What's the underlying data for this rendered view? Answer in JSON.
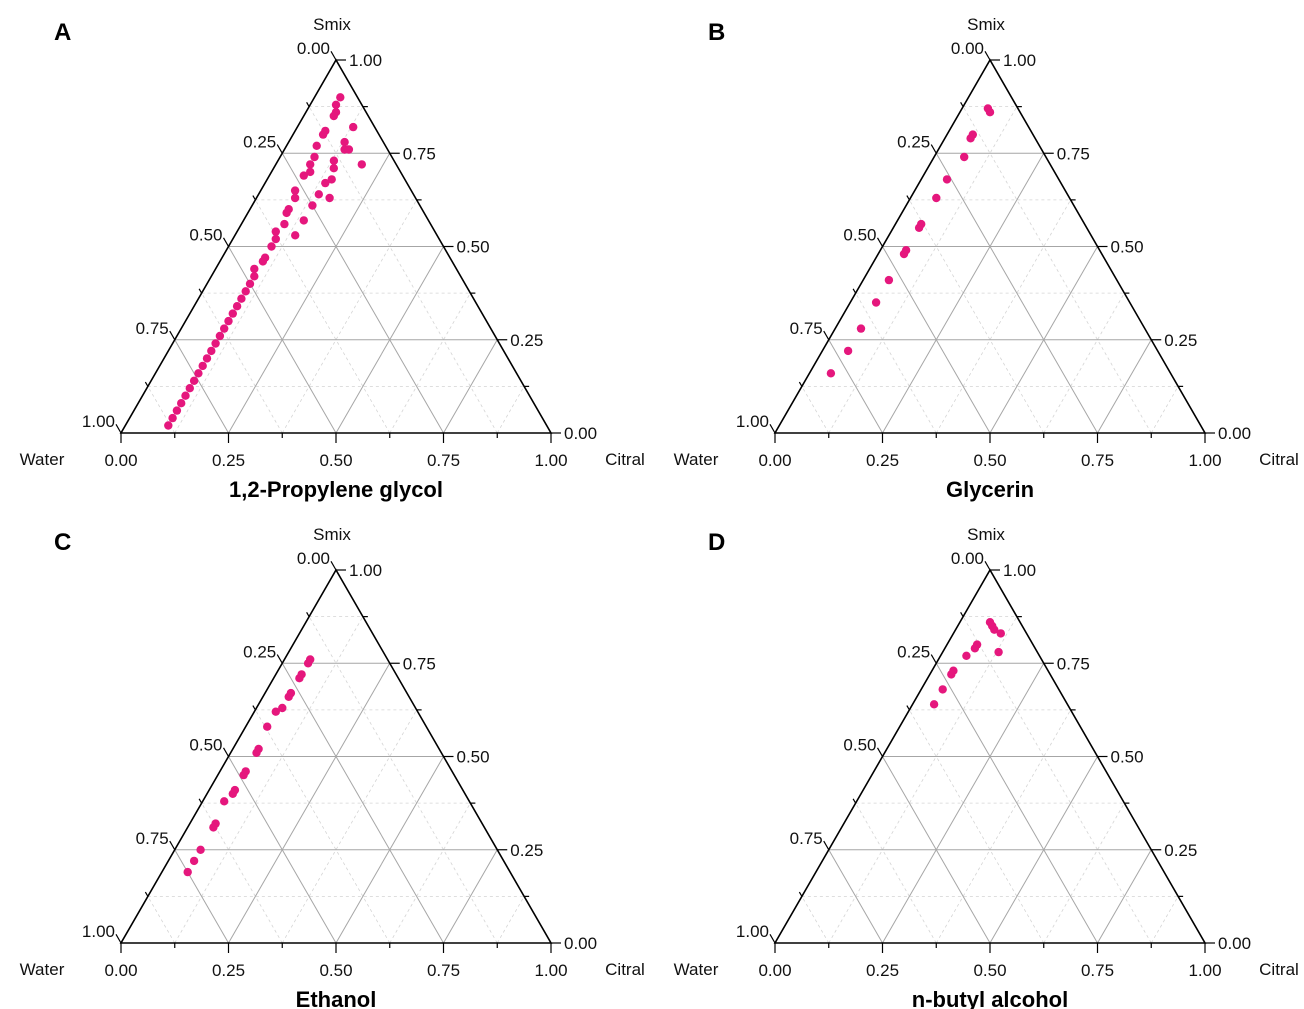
{
  "figure": {
    "point_color": "#e5177d",
    "major_grid_color": "#a6a6a6",
    "minor_grid_color": "#d4d4d4",
    "axis_color": "#000000"
  },
  "chart_data": [
    {
      "type": "scatter",
      "panel": "A",
      "title": "1,2-Propylene glycol",
      "apex_labels": {
        "top": "Smix",
        "left": "Water",
        "right": "Citral"
      },
      "components": [
        "Water",
        "Smix",
        "Citral"
      ],
      "ticks": [
        "0.00",
        "0.25",
        "0.50",
        "0.75",
        "1.00"
      ],
      "grid": true,
      "points": [
        {
          "water": 0.04,
          "smix": 0.9,
          "citral": 0.06
        },
        {
          "water": 0.06,
          "smix": 0.88,
          "citral": 0.06
        },
        {
          "water": 0.07,
          "smix": 0.86,
          "citral": 0.07
        },
        {
          "water": 0.08,
          "smix": 0.85,
          "citral": 0.07
        },
        {
          "water": 0.12,
          "smix": 0.81,
          "citral": 0.07
        },
        {
          "water": 0.13,
          "smix": 0.8,
          "citral": 0.07
        },
        {
          "water": 0.16,
          "smix": 0.77,
          "citral": 0.07
        },
        {
          "water": 0.18,
          "smix": 0.74,
          "citral": 0.08
        },
        {
          "water": 0.2,
          "smix": 0.72,
          "citral": 0.08
        },
        {
          "water": 0.21,
          "smix": 0.7,
          "citral": 0.09
        },
        {
          "water": 0.23,
          "smix": 0.69,
          "citral": 0.08
        },
        {
          "water": 0.27,
          "smix": 0.65,
          "citral": 0.08
        },
        {
          "water": 0.28,
          "smix": 0.63,
          "citral": 0.09
        },
        {
          "water": 0.31,
          "smix": 0.6,
          "citral": 0.09
        },
        {
          "water": 0.32,
          "smix": 0.59,
          "citral": 0.09
        },
        {
          "water": 0.34,
          "smix": 0.56,
          "citral": 0.1
        },
        {
          "water": 0.37,
          "smix": 0.54,
          "citral": 0.09
        },
        {
          "water": 0.38,
          "smix": 0.52,
          "citral": 0.1
        },
        {
          "water": 0.4,
          "smix": 0.5,
          "citral": 0.1
        },
        {
          "water": 0.43,
          "smix": 0.47,
          "citral": 0.1
        },
        {
          "water": 0.44,
          "smix": 0.46,
          "citral": 0.1
        },
        {
          "water": 0.47,
          "smix": 0.44,
          "citral": 0.09
        },
        {
          "water": 0.48,
          "smix": 0.42,
          "citral": 0.1
        },
        {
          "water": 0.5,
          "smix": 0.4,
          "citral": 0.1
        },
        {
          "water": 0.52,
          "smix": 0.38,
          "citral": 0.1
        },
        {
          "water": 0.54,
          "smix": 0.36,
          "citral": 0.1
        },
        {
          "water": 0.56,
          "smix": 0.34,
          "citral": 0.1
        },
        {
          "water": 0.58,
          "smix": 0.32,
          "citral": 0.1
        },
        {
          "water": 0.6,
          "smix": 0.3,
          "citral": 0.1
        },
        {
          "water": 0.62,
          "smix": 0.28,
          "citral": 0.1
        },
        {
          "water": 0.64,
          "smix": 0.26,
          "citral": 0.1
        },
        {
          "water": 0.66,
          "smix": 0.24,
          "citral": 0.1
        },
        {
          "water": 0.68,
          "smix": 0.22,
          "citral": 0.1
        },
        {
          "water": 0.7,
          "smix": 0.2,
          "citral": 0.1
        },
        {
          "water": 0.72,
          "smix": 0.18,
          "citral": 0.1
        },
        {
          "water": 0.74,
          "smix": 0.16,
          "citral": 0.1
        },
        {
          "water": 0.76,
          "smix": 0.14,
          "citral": 0.1
        },
        {
          "water": 0.78,
          "smix": 0.12,
          "citral": 0.1
        },
        {
          "water": 0.8,
          "smix": 0.1,
          "citral": 0.1
        },
        {
          "water": 0.82,
          "smix": 0.08,
          "citral": 0.1
        },
        {
          "water": 0.84,
          "smix": 0.06,
          "citral": 0.1
        },
        {
          "water": 0.86,
          "smix": 0.04,
          "citral": 0.1
        },
        {
          "water": 0.88,
          "smix": 0.02,
          "citral": 0.1
        },
        {
          "water": 0.05,
          "smix": 0.82,
          "citral": 0.13
        },
        {
          "water": 0.09,
          "smix": 0.78,
          "citral": 0.13
        },
        {
          "water": 0.1,
          "smix": 0.76,
          "citral": 0.14
        },
        {
          "water": 0.14,
          "smix": 0.73,
          "citral": 0.13
        },
        {
          "water": 0.15,
          "smix": 0.71,
          "citral": 0.14
        },
        {
          "water": 0.19,
          "smix": 0.67,
          "citral": 0.14
        },
        {
          "water": 0.22,
          "smix": 0.64,
          "citral": 0.14
        },
        {
          "water": 0.25,
          "smix": 0.61,
          "citral": 0.14
        },
        {
          "water": 0.29,
          "smix": 0.57,
          "citral": 0.14
        },
        {
          "water": 0.33,
          "smix": 0.53,
          "citral": 0.14
        },
        {
          "water": 0.08,
          "smix": 0.72,
          "citral": 0.2
        },
        {
          "water": 0.09,
          "smix": 0.76,
          "citral": 0.15
        },
        {
          "water": 0.17,
          "smix": 0.68,
          "citral": 0.15
        },
        {
          "water": 0.2,
          "smix": 0.63,
          "citral": 0.17
        }
      ]
    },
    {
      "type": "scatter",
      "panel": "B",
      "title": "Glycerin",
      "apex_labels": {
        "top": "Smix",
        "left": "Water",
        "right": "Citral"
      },
      "components": [
        "Water",
        "Smix",
        "Citral"
      ],
      "ticks": [
        "0.00",
        "0.25",
        "0.50",
        "0.75",
        "1.00"
      ],
      "grid": true,
      "points": [
        {
          "water": 0.07,
          "smix": 0.87,
          "citral": 0.06
        },
        {
          "water": 0.07,
          "smix": 0.86,
          "citral": 0.07
        },
        {
          "water": 0.14,
          "smix": 0.8,
          "citral": 0.06
        },
        {
          "water": 0.15,
          "smix": 0.79,
          "citral": 0.06
        },
        {
          "water": 0.19,
          "smix": 0.74,
          "citral": 0.07
        },
        {
          "water": 0.26,
          "smix": 0.68,
          "citral": 0.06
        },
        {
          "water": 0.31,
          "smix": 0.63,
          "citral": 0.06
        },
        {
          "water": 0.38,
          "smix": 0.56,
          "citral": 0.06
        },
        {
          "water": 0.39,
          "smix": 0.55,
          "citral": 0.06
        },
        {
          "water": 0.45,
          "smix": 0.49,
          "citral": 0.06
        },
        {
          "water": 0.46,
          "smix": 0.48,
          "citral": 0.06
        },
        {
          "water": 0.53,
          "smix": 0.41,
          "citral": 0.06
        },
        {
          "water": 0.59,
          "smix": 0.35,
          "citral": 0.06
        },
        {
          "water": 0.66,
          "smix": 0.28,
          "citral": 0.06
        },
        {
          "water": 0.72,
          "smix": 0.22,
          "citral": 0.06
        },
        {
          "water": 0.79,
          "smix": 0.16,
          "citral": 0.05
        }
      ]
    },
    {
      "type": "scatter",
      "panel": "C",
      "title": "Ethanol",
      "apex_labels": {
        "top": "Smix",
        "left": "Water",
        "right": "Citral"
      },
      "components": [
        "Water",
        "Smix",
        "Citral"
      ],
      "ticks": [
        "0.00",
        "0.25",
        "0.50",
        "0.75",
        "1.00"
      ],
      "grid": true,
      "points": [
        {
          "water": 0.18,
          "smix": 0.76,
          "citral": 0.06
        },
        {
          "water": 0.19,
          "smix": 0.75,
          "citral": 0.06
        },
        {
          "water": 0.22,
          "smix": 0.72,
          "citral": 0.06
        },
        {
          "water": 0.23,
          "smix": 0.71,
          "citral": 0.06
        },
        {
          "water": 0.27,
          "smix": 0.67,
          "citral": 0.06
        },
        {
          "water": 0.28,
          "smix": 0.66,
          "citral": 0.06
        },
        {
          "water": 0.31,
          "smix": 0.63,
          "citral": 0.06
        },
        {
          "water": 0.33,
          "smix": 0.62,
          "citral": 0.05
        },
        {
          "water": 0.37,
          "smix": 0.58,
          "citral": 0.05
        },
        {
          "water": 0.42,
          "smix": 0.52,
          "citral": 0.06
        },
        {
          "water": 0.43,
          "smix": 0.51,
          "citral": 0.06
        },
        {
          "water": 0.48,
          "smix": 0.46,
          "citral": 0.06
        },
        {
          "water": 0.49,
          "smix": 0.45,
          "citral": 0.06
        },
        {
          "water": 0.53,
          "smix": 0.41,
          "citral": 0.06
        },
        {
          "water": 0.54,
          "smix": 0.4,
          "citral": 0.06
        },
        {
          "water": 0.57,
          "smix": 0.38,
          "citral": 0.05
        },
        {
          "water": 0.62,
          "smix": 0.32,
          "citral": 0.06
        },
        {
          "water": 0.63,
          "smix": 0.31,
          "citral": 0.06
        },
        {
          "water": 0.69,
          "smix": 0.25,
          "citral": 0.06
        },
        {
          "water": 0.72,
          "smix": 0.22,
          "citral": 0.06
        },
        {
          "water": 0.75,
          "smix": 0.19,
          "citral": 0.06
        }
      ]
    },
    {
      "type": "scatter",
      "panel": "D",
      "title": "n-butyl alcohol",
      "apex_labels": {
        "top": "Smix",
        "left": "Water",
        "right": "Citral"
      },
      "components": [
        "Water",
        "Smix",
        "Citral"
      ],
      "ticks": [
        "0.00",
        "0.25",
        "0.50",
        "0.75",
        "1.00"
      ],
      "grid": true,
      "points": [
        {
          "water": 0.07,
          "smix": 0.86,
          "citral": 0.07
        },
        {
          "water": 0.07,
          "smix": 0.85,
          "citral": 0.08
        },
        {
          "water": 0.07,
          "smix": 0.84,
          "citral": 0.09
        },
        {
          "water": 0.06,
          "smix": 0.83,
          "citral": 0.11
        },
        {
          "water": 0.13,
          "smix": 0.8,
          "citral": 0.07
        },
        {
          "water": 0.14,
          "smix": 0.79,
          "citral": 0.07
        },
        {
          "water": 0.09,
          "smix": 0.78,
          "citral": 0.13
        },
        {
          "water": 0.17,
          "smix": 0.77,
          "citral": 0.06
        },
        {
          "water": 0.22,
          "smix": 0.73,
          "citral": 0.05
        },
        {
          "water": 0.23,
          "smix": 0.72,
          "citral": 0.05
        },
        {
          "water": 0.27,
          "smix": 0.68,
          "citral": 0.05
        },
        {
          "water": 0.31,
          "smix": 0.64,
          "citral": 0.05
        }
      ]
    }
  ]
}
